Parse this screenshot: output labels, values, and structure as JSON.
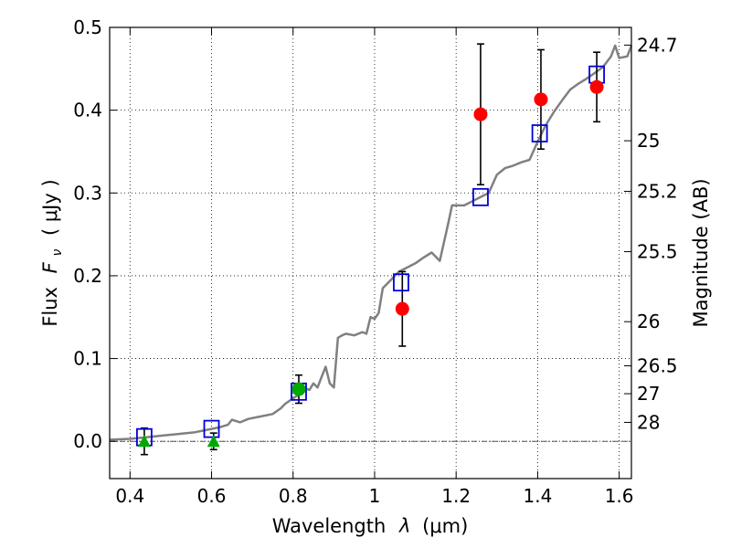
{
  "chart_data": {
    "type": "scatter",
    "title": "",
    "xlabel": "Wavelength",
    "xlabel_symbol": "λ",
    "xlabel_unit": "(μm)",
    "ylabel": "Flux",
    "ylabel_symbol": "F",
    "ylabel_subscript": "ν",
    "ylabel_unit": "( μJy )",
    "ylabel_right": "Magnitude (AB)",
    "xlim": [
      0.35,
      1.63
    ],
    "ylim": [
      -0.045,
      0.5
    ],
    "grid": true,
    "legend": "none",
    "x_ticks": [
      0.4,
      0.6,
      0.8,
      1.0,
      1.2,
      1.4,
      1.6
    ],
    "x_tick_labels": [
      "0.4",
      "0.6",
      "0.8",
      "1",
      "1.2",
      "1.4",
      "1.6"
    ],
    "y_ticks": [
      0.0,
      0.1,
      0.2,
      0.3,
      0.4,
      0.5
    ],
    "y_tick_labels": [
      "0.0",
      "0.1",
      "0.2",
      "0.3",
      "0.4",
      "0.5"
    ],
    "right_ticks": [
      {
        "label": "24.7",
        "mag": 24.7
      },
      {
        "label": "25",
        "mag": 25.0
      },
      {
        "label": "25.2",
        "mag": 25.2
      },
      {
        "label": "25.5",
        "mag": 25.5
      },
      {
        "label": "26",
        "mag": 26.0
      },
      {
        "label": "26.5",
        "mag": 26.5
      },
      {
        "label": "27",
        "mag": 27.0
      },
      {
        "label": "28",
        "mag": 28.0
      }
    ],
    "zero_line": 0.0,
    "series": [
      {
        "name": "model spectrum",
        "kind": "line",
        "color": "#808080",
        "points": [
          [
            0.35,
            0.002
          ],
          [
            0.4,
            0.003
          ],
          [
            0.44,
            0.005
          ],
          [
            0.48,
            0.007
          ],
          [
            0.52,
            0.009
          ],
          [
            0.56,
            0.011
          ],
          [
            0.6,
            0.015
          ],
          [
            0.62,
            0.017
          ],
          [
            0.64,
            0.02
          ],
          [
            0.65,
            0.026
          ],
          [
            0.67,
            0.023
          ],
          [
            0.69,
            0.027
          ],
          [
            0.71,
            0.029
          ],
          [
            0.73,
            0.031
          ],
          [
            0.75,
            0.033
          ],
          [
            0.77,
            0.04
          ],
          [
            0.78,
            0.045
          ],
          [
            0.8,
            0.052
          ],
          [
            0.82,
            0.058
          ],
          [
            0.83,
            0.064
          ],
          [
            0.84,
            0.062
          ],
          [
            0.85,
            0.07
          ],
          [
            0.86,
            0.065
          ],
          [
            0.87,
            0.078
          ],
          [
            0.88,
            0.09
          ],
          [
            0.89,
            0.07
          ],
          [
            0.9,
            0.065
          ],
          [
            0.91,
            0.125
          ],
          [
            0.92,
            0.128
          ],
          [
            0.93,
            0.13
          ],
          [
            0.95,
            0.128
          ],
          [
            0.97,
            0.132
          ],
          [
            0.98,
            0.13
          ],
          [
            0.99,
            0.15
          ],
          [
            1.0,
            0.148
          ],
          [
            1.01,
            0.155
          ],
          [
            1.02,
            0.185
          ],
          [
            1.04,
            0.195
          ],
          [
            1.06,
            0.205
          ],
          [
            1.08,
            0.21
          ],
          [
            1.1,
            0.215
          ],
          [
            1.12,
            0.222
          ],
          [
            1.14,
            0.228
          ],
          [
            1.16,
            0.218
          ],
          [
            1.18,
            0.262
          ],
          [
            1.19,
            0.285
          ],
          [
            1.2,
            0.285
          ],
          [
            1.22,
            0.285
          ],
          [
            1.24,
            0.29
          ],
          [
            1.26,
            0.295
          ],
          [
            1.28,
            0.3
          ],
          [
            1.3,
            0.322
          ],
          [
            1.32,
            0.33
          ],
          [
            1.34,
            0.333
          ],
          [
            1.36,
            0.337
          ],
          [
            1.38,
            0.34
          ],
          [
            1.4,
            0.362
          ],
          [
            1.42,
            0.382
          ],
          [
            1.44,
            0.398
          ],
          [
            1.46,
            0.412
          ],
          [
            1.48,
            0.425
          ],
          [
            1.5,
            0.432
          ],
          [
            1.52,
            0.438
          ],
          [
            1.54,
            0.445
          ],
          [
            1.56,
            0.452
          ],
          [
            1.58,
            0.465
          ],
          [
            1.59,
            0.478
          ],
          [
            1.6,
            0.463
          ],
          [
            1.62,
            0.465
          ],
          [
            1.63,
            0.478
          ]
        ]
      },
      {
        "name": "model photometry",
        "kind": "open-square",
        "color": "#0000dd",
        "points": [
          [
            0.435,
            0.005
          ],
          [
            0.6,
            0.015
          ],
          [
            0.814,
            0.06
          ],
          [
            1.065,
            0.192
          ],
          [
            1.26,
            0.295
          ],
          [
            1.405,
            0.372
          ],
          [
            1.545,
            0.443
          ]
        ]
      },
      {
        "name": "detections",
        "kind": "filled-circle",
        "color": "#ff0000",
        "points": [
          {
            "x": 1.068,
            "y": 0.16,
            "err": 0.045
          },
          {
            "x": 1.26,
            "y": 0.395,
            "err": 0.085
          },
          {
            "x": 1.408,
            "y": 0.413,
            "err": 0.06
          },
          {
            "x": 1.545,
            "y": 0.428,
            "err": 0.042
          }
        ]
      },
      {
        "name": "green detection",
        "kind": "filled-circle",
        "color": "#00aa00",
        "points": [
          {
            "x": 0.814,
            "y": 0.063,
            "err": 0.017
          }
        ]
      },
      {
        "name": "upper limits",
        "kind": "triangle",
        "color": "#00aa00",
        "points": [
          {
            "x": 0.435,
            "y": 0.0,
            "err": 0.016
          },
          {
            "x": 0.605,
            "y": 0.0,
            "err": 0.01
          }
        ]
      }
    ]
  }
}
